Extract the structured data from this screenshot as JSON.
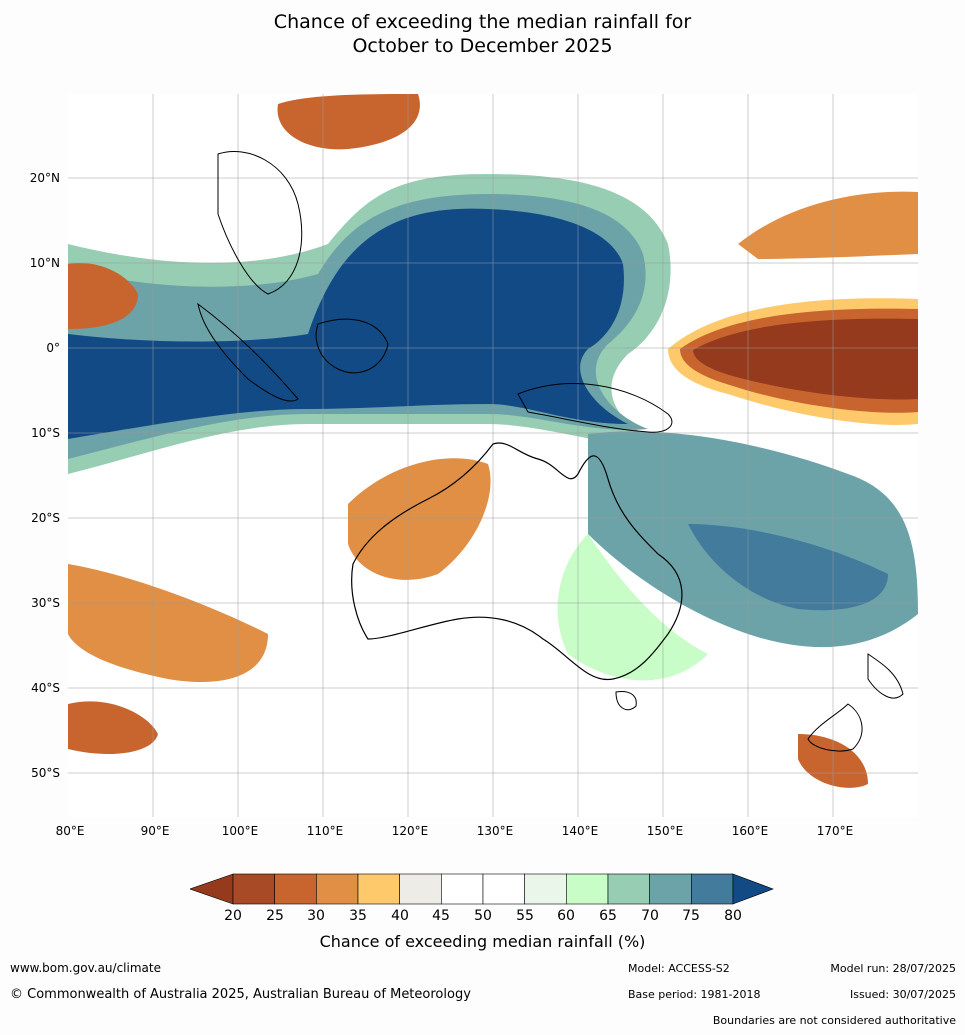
{
  "title_line1": "Chance of exceeding the median rainfall for",
  "title_line2": "October to December 2025",
  "lat_labels": [
    "20°N",
    "10°N",
    "0°",
    "10°S",
    "20°S",
    "30°S",
    "40°S",
    "50°S"
  ],
  "lon_labels": [
    "80°E",
    "90°E",
    "100°E",
    "110°E",
    "120°E",
    "130°E",
    "140°E",
    "150°E",
    "160°E",
    "170°E"
  ],
  "colorbar": {
    "ticks": [
      "20",
      "25",
      "30",
      "35",
      "40",
      "45",
      "50",
      "55",
      "60",
      "65",
      "70",
      "75",
      "80"
    ],
    "colors": [
      "#a94a26",
      "#c8652f",
      "#e08f45",
      "#fdc96a",
      "#eeece7",
      "#ffffff",
      "#ffffff",
      "#e9f6e9",
      "#c8fdc8",
      "#97cdb3",
      "#6ca3a8",
      "#437b9c"
    ],
    "under_color": "#963a1e",
    "over_color": "#124a86",
    "label": "Chance of exceeding median rainfall (%)"
  },
  "footer": {
    "website": "www.bom.gov.au/climate",
    "copyright": "© Commonwealth of Australia 2025, Australian Bureau of Meteorology",
    "model": "Model: ACCESS-S2",
    "base_period": "Base period: 1981-2018",
    "model_run": "Model run: 28/07/2025",
    "issued": "Issued: 30/07/2025",
    "disclaimer": "Boundaries are not considered authoritative"
  }
}
